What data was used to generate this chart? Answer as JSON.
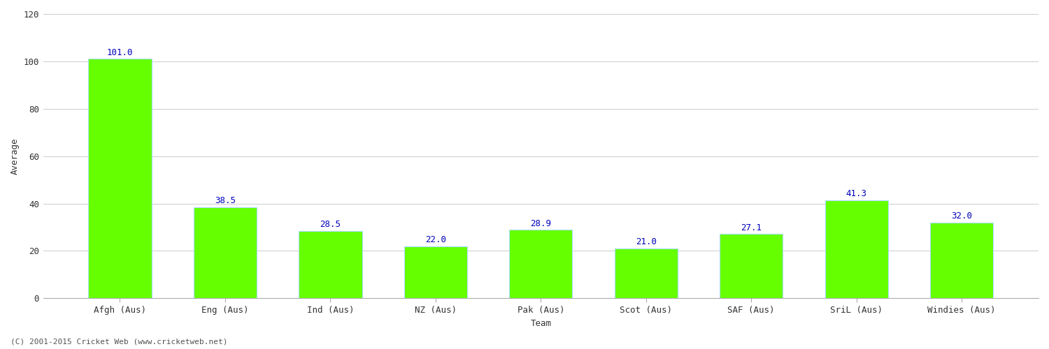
{
  "categories": [
    "Afgh (Aus)",
    "Eng (Aus)",
    "Ind (Aus)",
    "NZ (Aus)",
    "Pak (Aus)",
    "Scot (Aus)",
    "SAF (Aus)",
    "SriL (Aus)",
    "Windies (Aus)"
  ],
  "values": [
    101.0,
    38.5,
    28.5,
    22.0,
    28.9,
    21.0,
    27.1,
    41.3,
    32.0
  ],
  "bar_color": "#66ff00",
  "bar_edge_color": "#aaddff",
  "label_color": "#0000bb",
  "ylabel": "Average",
  "xlabel": "Team",
  "ylim": [
    0,
    120
  ],
  "yticks": [
    0,
    20,
    40,
    60,
    80,
    100,
    120
  ],
  "background_color": "#ffffff",
  "grid_color": "#cccccc",
  "label_fontsize": 9,
  "axis_fontsize": 9,
  "tick_fontsize": 9,
  "footer": "(C) 2001-2015 Cricket Web (www.cricketweb.net)"
}
